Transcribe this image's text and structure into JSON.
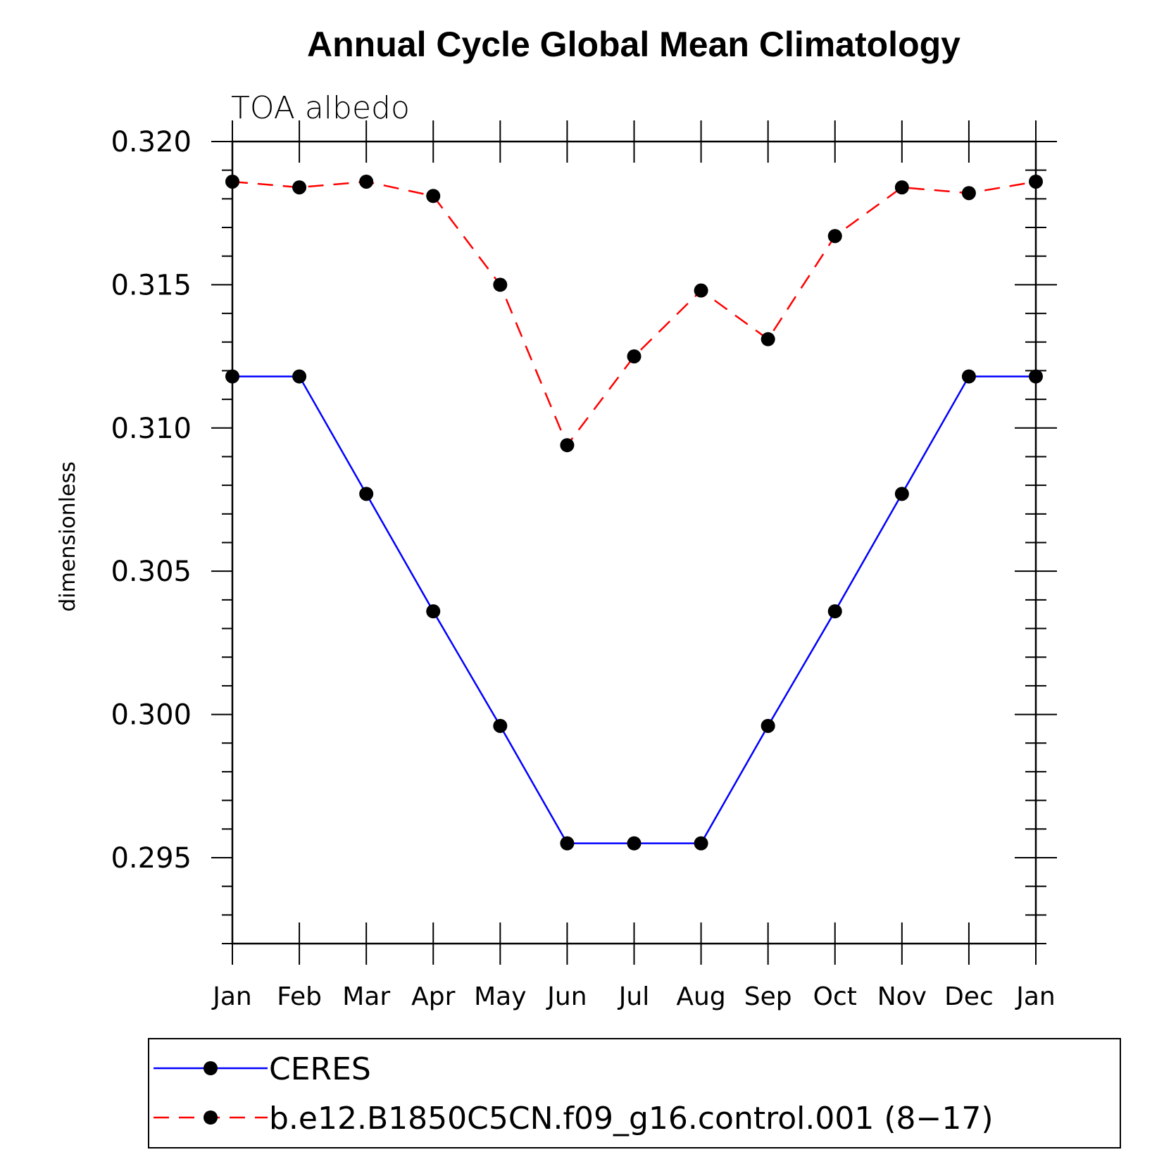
{
  "chart_data": {
    "type": "line",
    "title": "Annual Cycle Global Mean Climatology",
    "subtitle": "TOA albedo",
    "ylabel": "dimensionless",
    "xlabel": "",
    "categories": [
      "Jan",
      "Feb",
      "Mar",
      "Apr",
      "May",
      "Jun",
      "Jul",
      "Aug",
      "Sep",
      "Oct",
      "Nov",
      "Dec",
      "Jan"
    ],
    "ylim": [
      0.292,
      0.32
    ],
    "yticks": [
      "0.320",
      "0.315",
      "0.310",
      "0.305",
      "0.300",
      "0.295"
    ],
    "ytick_values": [
      0.32,
      0.315,
      0.31,
      0.305,
      0.3,
      0.295
    ],
    "grid": false,
    "legend_position": "bottom",
    "series": [
      {
        "name": "CERES",
        "color": "#0000ff",
        "dash": "solid",
        "values": [
          0.3118,
          0.3118,
          0.3077,
          0.3036,
          0.2996,
          0.2955,
          0.2955,
          0.2955,
          0.2996,
          0.3036,
          0.3077,
          0.3118,
          0.3118
        ]
      },
      {
        "name": "b.e12.B1850C5CN.f09_g16.control.001 (8−17)",
        "color": "#ff0000",
        "dash": "dashed",
        "values": [
          0.3186,
          0.3184,
          0.3186,
          0.3181,
          0.315,
          0.3094,
          0.3125,
          0.3148,
          0.3131,
          0.3167,
          0.3184,
          0.3182,
          0.3186
        ]
      }
    ]
  }
}
